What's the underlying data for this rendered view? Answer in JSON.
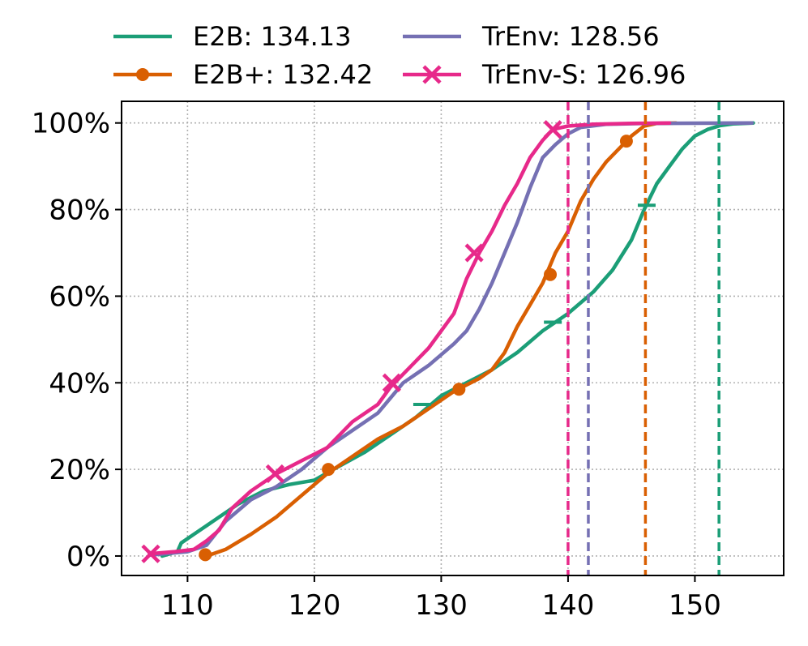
{
  "chart_data": {
    "type": "line",
    "title": "",
    "xlabel": "",
    "ylabel": "",
    "xlim": [
      104.8,
      157.0
    ],
    "ylim": [
      -4.5,
      105.0
    ],
    "grid": true,
    "grid_style": "dotted",
    "legend_placement": "top, outside, 2 columns",
    "x_ticks": [
      110,
      120,
      130,
      140,
      150
    ],
    "x_tick_labels": [
      "110",
      "120",
      "130",
      "140",
      "150"
    ],
    "y_ticks": [
      0,
      20,
      40,
      60,
      80,
      100
    ],
    "y_tick_labels": [
      "0%",
      "20%",
      "40%",
      "60%",
      "80%",
      "100%"
    ],
    "series": [
      {
        "name": "E2B: 134.13",
        "color": "#1b9e77",
        "marker": "tick",
        "points": [
          [
            108.0,
            0
          ],
          [
            109.2,
            1
          ],
          [
            109.5,
            3
          ],
          [
            110.5,
            5
          ],
          [
            112,
            8
          ],
          [
            114,
            12
          ],
          [
            116,
            15
          ],
          [
            118,
            16.5
          ],
          [
            120,
            17.5
          ],
          [
            121.5,
            20
          ],
          [
            124,
            24
          ],
          [
            126,
            28
          ],
          [
            128,
            32
          ],
          [
            130,
            37
          ],
          [
            132,
            40
          ],
          [
            134,
            43
          ],
          [
            136,
            47
          ],
          [
            138,
            52
          ],
          [
            139,
            54
          ],
          [
            140,
            56
          ],
          [
            142,
            61
          ],
          [
            143.5,
            66
          ],
          [
            145,
            73
          ],
          [
            146,
            80
          ],
          [
            147,
            86
          ],
          [
            148,
            90
          ],
          [
            149,
            94
          ],
          [
            150,
            97
          ],
          [
            151,
            98.5
          ],
          [
            152,
            99.4
          ],
          [
            153,
            99.8
          ],
          [
            154.6,
            100
          ]
        ],
        "marker_points": [
          [
            128.5,
            35
          ],
          [
            138.8,
            54
          ],
          [
            146.2,
            81
          ]
        ],
        "reference_line_x": 151.9
      },
      {
        "name": "E2B+: 132.42",
        "color": "#d95f02",
        "marker": "circle",
        "points": [
          [
            111.5,
            0
          ],
          [
            113,
            1.5
          ],
          [
            115,
            5
          ],
          [
            117,
            9
          ],
          [
            119,
            14
          ],
          [
            121,
            19
          ],
          [
            123,
            23
          ],
          [
            125,
            27
          ],
          [
            127,
            30
          ],
          [
            129,
            34
          ],
          [
            131,
            38
          ],
          [
            133,
            41
          ],
          [
            134,
            43
          ],
          [
            135,
            47
          ],
          [
            136,
            53
          ],
          [
            137,
            58
          ],
          [
            138,
            63
          ],
          [
            139,
            70
          ],
          [
            140,
            75
          ],
          [
            141,
            82
          ],
          [
            142,
            87
          ],
          [
            143,
            91
          ],
          [
            144,
            94
          ],
          [
            145,
            97
          ],
          [
            146,
            99.3
          ],
          [
            147,
            99.9
          ],
          [
            148.5,
            100
          ]
        ],
        "marker_points": [
          [
            111.4,
            0.3
          ],
          [
            121.1,
            20
          ],
          [
            131.4,
            38.5
          ],
          [
            138.6,
            65
          ],
          [
            144.6,
            95.8
          ]
        ],
        "reference_line_x": 146.1
      },
      {
        "name": "TrEnv: 128.56",
        "color": "#7570b3",
        "marker": "none",
        "points": [
          [
            107.0,
            0.2
          ],
          [
            110,
            1
          ],
          [
            111.5,
            2.5
          ],
          [
            113,
            8
          ],
          [
            115,
            13
          ],
          [
            117,
            16
          ],
          [
            119,
            20
          ],
          [
            121,
            25
          ],
          [
            123,
            29
          ],
          [
            125,
            33
          ],
          [
            127,
            40
          ],
          [
            129,
            44
          ],
          [
            131,
            49
          ],
          [
            132,
            52
          ],
          [
            133,
            57
          ],
          [
            134,
            63
          ],
          [
            135,
            70
          ],
          [
            136,
            77
          ],
          [
            137,
            85
          ],
          [
            138,
            92
          ],
          [
            139,
            95
          ],
          [
            140,
            97.5
          ],
          [
            141,
            99
          ],
          [
            143,
            99.7
          ],
          [
            146,
            99.9
          ],
          [
            154.5,
            100
          ]
        ],
        "marker_points": [],
        "reference_line_x": 141.6
      },
      {
        "name": "TrEnv-S: 126.96",
        "color": "#e7298a",
        "marker": "cross",
        "points": [
          [
            107.0,
            0.5
          ],
          [
            109,
            1
          ],
          [
            110.5,
            1.5
          ],
          [
            111.5,
            3.5
          ],
          [
            112.5,
            6
          ],
          [
            113.5,
            11
          ],
          [
            115,
            15
          ],
          [
            117,
            19
          ],
          [
            119,
            22
          ],
          [
            121,
            25
          ],
          [
            123,
            31
          ],
          [
            125,
            35
          ],
          [
            126,
            39
          ],
          [
            127,
            42
          ],
          [
            129,
            48
          ],
          [
            131,
            56
          ],
          [
            132,
            64
          ],
          [
            133,
            70
          ],
          [
            134,
            75
          ],
          [
            135,
            81
          ],
          [
            136,
            86
          ],
          [
            137,
            92
          ],
          [
            138,
            96
          ],
          [
            138.8,
            98.5
          ],
          [
            140,
            99.3
          ],
          [
            142,
            99.7
          ],
          [
            145,
            99.9
          ],
          [
            148,
            100
          ]
        ],
        "marker_points": [
          [
            107.1,
            0.5
          ],
          [
            116.9,
            19
          ],
          [
            126.1,
            40
          ],
          [
            132.6,
            70
          ],
          [
            138.8,
            98.5
          ]
        ],
        "reference_line_x": 140.0
      }
    ]
  }
}
